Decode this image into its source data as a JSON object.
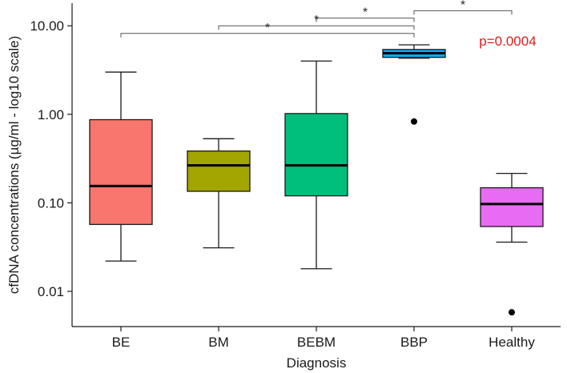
{
  "chart_data": {
    "type": "box",
    "xlabel": "Diagnosis",
    "ylabel": "cfDNA concentrations (µg/ml - log10 scale)",
    "y_scale": "log10",
    "ylim": [
      0.004,
      18
    ],
    "y_ticks": [
      {
        "value": 0.01,
        "label": "0.01"
      },
      {
        "value": 0.1,
        "label": "0.10"
      },
      {
        "value": 1,
        "label": "1.00"
      },
      {
        "value": 10,
        "label": "10.00"
      }
    ],
    "categories": [
      "BE",
      "BM",
      "BEBM",
      "BBP",
      "Healthy"
    ],
    "boxes": [
      {
        "category": "BE",
        "whisker_low": 0.022,
        "q1": 0.057,
        "median": 0.155,
        "q3": 0.87,
        "whisker_high": 3.0,
        "outliers": [],
        "color": "#F8766D"
      },
      {
        "category": "BM",
        "whisker_low": 0.031,
        "q1": 0.135,
        "median": 0.265,
        "q3": 0.385,
        "whisker_high": 0.53,
        "outliers": [],
        "color": "#A3A500"
      },
      {
        "category": "BEBM",
        "whisker_low": 0.018,
        "q1": 0.12,
        "median": 0.265,
        "q3": 1.02,
        "whisker_high": 4.0,
        "outliers": [],
        "color": "#00BF7D"
      },
      {
        "category": "BBP",
        "whisker_low": 4.3,
        "q1": 4.4,
        "median": 4.9,
        "q3": 5.4,
        "whisker_high": 6.1,
        "outliers": [
          0.83
        ],
        "color": "#00B0F6"
      },
      {
        "category": "Healthy",
        "whisker_low": 0.036,
        "q1": 0.054,
        "median": 0.097,
        "q3": 0.148,
        "whisker_high": 0.215,
        "outliers": [
          0.0058
        ],
        "color": "#E76BF3"
      }
    ],
    "annotations": {
      "p_value": {
        "text": "p=0.0004",
        "color": "#E41A1C"
      },
      "significance_brackets": [
        {
          "from": "BE",
          "to": "BBP",
          "y": 8.2,
          "label": "*"
        },
        {
          "from": "BM",
          "to": "BBP",
          "y": 10.0,
          "label": "*"
        },
        {
          "from": "BEBM",
          "to": "BBP",
          "y": 12.2,
          "label": "*"
        },
        {
          "from": "BBP",
          "to": "Healthy",
          "y": 14.8,
          "label": "*"
        }
      ]
    }
  }
}
